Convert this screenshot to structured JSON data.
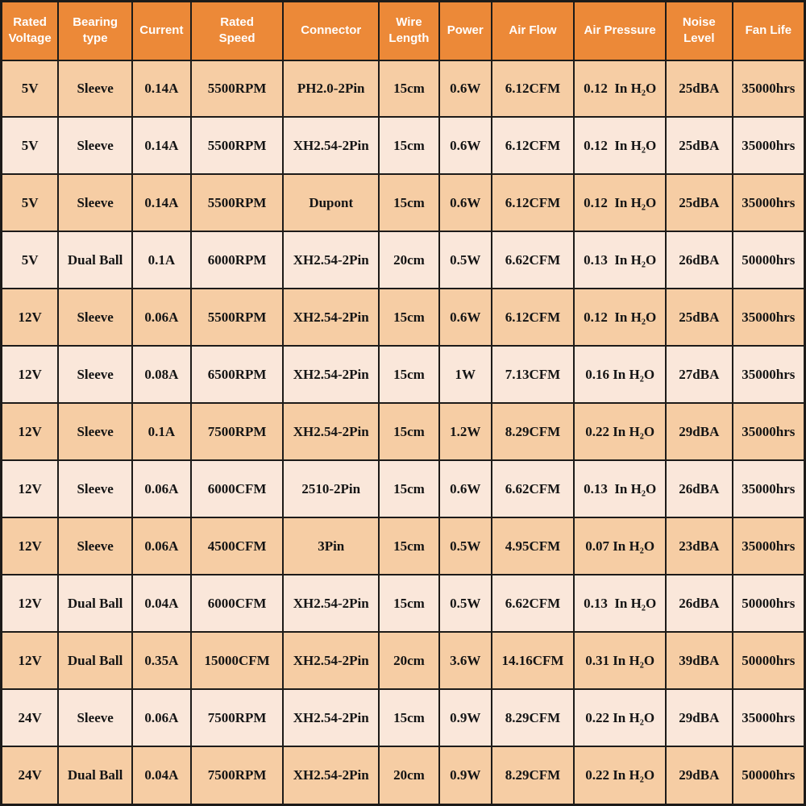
{
  "colors": {
    "header_bg": "#EC8938",
    "row_dark": "#F6CDA4",
    "row_light": "#FAE7DA",
    "border": "#1D1B19",
    "header_text": "#FFFFFF",
    "body_text": "#141414"
  },
  "chart_data": {
    "type": "table",
    "title": "",
    "columns": [
      "Rated\nVoltage",
      "Bearing\ntype",
      "Current",
      "Rated\nSpeed",
      "Connector",
      "Wire\nLength",
      "Power",
      "Air Flow",
      "Air Pressure",
      "Noise\nLevel",
      "Fan Life"
    ],
    "rows": [
      [
        "5V",
        "Sleeve",
        "0.14A",
        "5500RPM",
        "PH2.0-2Pin",
        "15cm",
        "0.6W",
        "6.12CFM",
        "0.12  In H₂O",
        "25dBA",
        "35000hrs"
      ],
      [
        "5V",
        "Sleeve",
        "0.14A",
        "5500RPM",
        "XH2.54-2Pin",
        "15cm",
        "0.6W",
        "6.12CFM",
        "0.12  In H₂O",
        "25dBA",
        "35000hrs"
      ],
      [
        "5V",
        "Sleeve",
        "0.14A",
        "5500RPM",
        "Dupont",
        "15cm",
        "0.6W",
        "6.12CFM",
        "0.12  In H₂O",
        "25dBA",
        "35000hrs"
      ],
      [
        "5V",
        "Dual Ball",
        "0.1A",
        "6000RPM",
        "XH2.54-2Pin",
        "20cm",
        "0.5W",
        "6.62CFM",
        "0.13  In H₂O",
        "26dBA",
        "50000hrs"
      ],
      [
        "12V",
        "Sleeve",
        "0.06A",
        "5500RPM",
        "XH2.54-2Pin",
        "15cm",
        "0.6W",
        "6.12CFM",
        "0.12  In H₂O",
        "25dBA",
        "35000hrs"
      ],
      [
        "12V",
        "Sleeve",
        "0.08A",
        "6500RPM",
        "XH2.54-2Pin",
        "15cm",
        "1W",
        "7.13CFM",
        "0.16 In H₂O",
        "27dBA",
        "35000hrs"
      ],
      [
        "12V",
        "Sleeve",
        "0.1A",
        "7500RPM",
        "XH2.54-2Pin",
        "15cm",
        "1.2W",
        "8.29CFM",
        "0.22 In H₂O",
        "29dBA",
        "35000hrs"
      ],
      [
        "12V",
        "Sleeve",
        "0.06A",
        "6000CFM",
        "2510-2Pin",
        "15cm",
        "0.6W",
        "6.62CFM",
        "0.13  In H₂O",
        "26dBA",
        "35000hrs"
      ],
      [
        "12V",
        "Sleeve",
        "0.06A",
        "4500CFM",
        "3Pin",
        "15cm",
        "0.5W",
        "4.95CFM",
        "0.07 In H₂O",
        "23dBA",
        "35000hrs"
      ],
      [
        "12V",
        "Dual Ball",
        "0.04A",
        "6000CFM",
        "XH2.54-2Pin",
        "15cm",
        "0.5W",
        "6.62CFM",
        "0.13  In H₂O",
        "26dBA",
        "50000hrs"
      ],
      [
        "12V",
        "Dual Ball",
        "0.35A",
        "15000CFM",
        "XH2.54-2Pin",
        "20cm",
        "3.6W",
        "14.16CFM",
        "0.31 In H₂O",
        "39dBA",
        "50000hrs"
      ],
      [
        "24V",
        "Sleeve",
        "0.06A",
        "7500RPM",
        "XH2.54-2Pin",
        "15cm",
        "0.9W",
        "8.29CFM",
        "0.22 In H₂O",
        "29dBA",
        "35000hrs"
      ],
      [
        "24V",
        "Dual Ball",
        "0.04A",
        "7500RPM",
        "XH2.54-2Pin",
        "20cm",
        "0.9W",
        "8.29CFM",
        "0.22 In H₂O",
        "29dBA",
        "50000hrs"
      ]
    ]
  }
}
